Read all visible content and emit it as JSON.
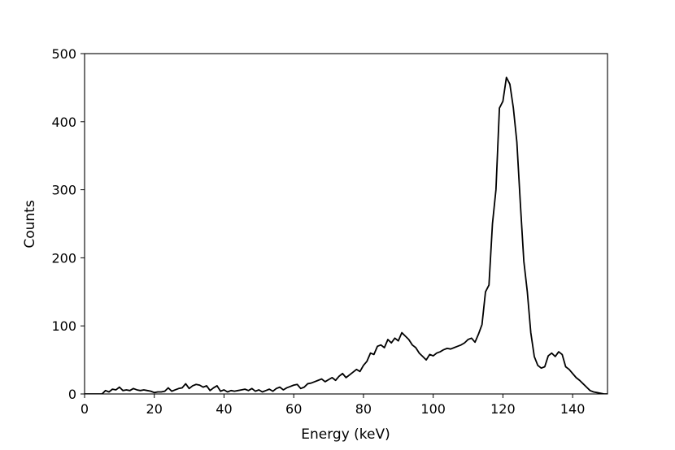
{
  "chart_data": {
    "type": "line",
    "title": "",
    "xlabel": "Energy (keV)",
    "ylabel": "Counts",
    "xlim": [
      0,
      150
    ],
    "ylim": [
      0,
      500
    ],
    "xticks": [
      0,
      20,
      40,
      60,
      80,
      100,
      120,
      140
    ],
    "yticks": [
      0,
      100,
      200,
      300,
      400,
      500
    ],
    "grid": false,
    "legend": "none",
    "line_color": "#000000",
    "series": [
      {
        "x": [
          0,
          1,
          2,
          3,
          4,
          5,
          6,
          7,
          8,
          9,
          10,
          11,
          12,
          13,
          14,
          15,
          16,
          17,
          18,
          19,
          20,
          21,
          22,
          23,
          24,
          25,
          26,
          27,
          28,
          29,
          30,
          31,
          32,
          33,
          34,
          35,
          36,
          37,
          38,
          39,
          40,
          41,
          42,
          43,
          44,
          45,
          46,
          47,
          48,
          49,
          50,
          51,
          52,
          53,
          54,
          55,
          56,
          57,
          58,
          59,
          60,
          61,
          62,
          63,
          64,
          65,
          66,
          67,
          68,
          69,
          70,
          71,
          72,
          73,
          74,
          75,
          76,
          77,
          78,
          79,
          80,
          81,
          82,
          83,
          84,
          85,
          86,
          87,
          88,
          89,
          90,
          91,
          92,
          93,
          94,
          95,
          96,
          97,
          98,
          99,
          100,
          101,
          102,
          103,
          104,
          105,
          106,
          107,
          108,
          109,
          110,
          111,
          112,
          113,
          114,
          115,
          116,
          117,
          118,
          119,
          120,
          121,
          122,
          123,
          124,
          125,
          126,
          127,
          128,
          129,
          130,
          131,
          132,
          133,
          134,
          135,
          136,
          137,
          138,
          139,
          140,
          141,
          142,
          143,
          144,
          145,
          146,
          147,
          148,
          149,
          150
        ],
        "y": [
          0,
          0,
          0,
          0,
          0,
          0,
          5,
          3,
          7,
          6,
          10,
          5,
          6,
          5,
          8,
          6,
          5,
          6,
          5,
          4,
          2,
          3,
          3,
          4,
          9,
          4,
          6,
          8,
          9,
          15,
          8,
          12,
          14,
          13,
          10,
          12,
          5,
          9,
          12,
          4,
          6,
          3,
          5,
          4,
          5,
          6,
          7,
          5,
          8,
          4,
          6,
          3,
          5,
          7,
          4,
          8,
          10,
          6,
          9,
          11,
          13,
          14,
          8,
          10,
          15,
          16,
          18,
          20,
          22,
          18,
          21,
          24,
          20,
          26,
          30,
          24,
          28,
          32,
          36,
          33,
          42,
          48,
          60,
          58,
          70,
          72,
          68,
          80,
          75,
          82,
          78,
          90,
          85,
          80,
          72,
          68,
          60,
          55,
          50,
          58,
          56,
          60,
          62,
          65,
          67,
          66,
          68,
          70,
          72,
          75,
          80,
          82,
          76,
          88,
          102,
          150,
          160,
          250,
          300,
          420,
          430,
          465,
          455,
          420,
          370,
          280,
          195,
          150,
          90,
          55,
          42,
          38,
          40,
          56,
          60,
          55,
          62,
          58,
          40,
          36,
          30,
          24,
          20,
          15,
          10,
          5,
          3,
          2,
          1,
          0,
          0
        ]
      }
    ]
  }
}
